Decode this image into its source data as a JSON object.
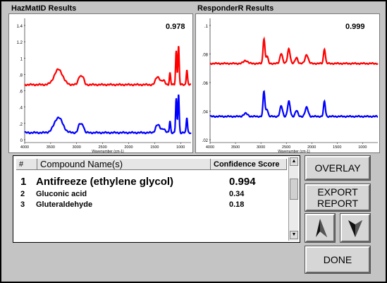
{
  "left_panel": {
    "title": "HazMatID Results",
    "score": "0.978",
    "y_ticks": [
      "1.4",
      "1.2",
      "1",
      ".8",
      ".6",
      ".4",
      ".2",
      "0"
    ],
    "x_ticks": [
      "4000",
      "3500",
      "3000",
      "2500",
      "2000",
      "1500",
      "1000"
    ],
    "xlabel": "Wavenumber (cm-1)"
  },
  "right_panel": {
    "title": "ResponderR Results",
    "score": "0.999",
    "y_ticks": [
      ".1",
      ".08",
      ".06",
      ".04",
      ".02"
    ],
    "x_ticks": [
      "4000",
      "3500",
      "3000",
      "2500",
      "2000",
      "1500",
      "1000"
    ],
    "xlabel": "Wavenumber (cm-1)"
  },
  "colors": {
    "reference": "#ff0000",
    "sample": "#0000ff"
  },
  "table": {
    "headers": {
      "num": "#",
      "name": "Compound Name(s)",
      "score": "Confidence Score"
    },
    "rows": [
      {
        "num": "1",
        "name": "Antifreeze (ethylene glycol)",
        "score": "0.994"
      },
      {
        "num": "2",
        "name": "Gluconic acid",
        "score": "0.34"
      },
      {
        "num": "3",
        "name": "Gluteraldehyde",
        "score": "0.18"
      }
    ]
  },
  "buttons": {
    "overlay": "OVERLAY",
    "export_line1": "EXPORT",
    "export_line2": "REPORT",
    "done": "DONE",
    "up_icon": "arrow-up-icon",
    "down_icon": "arrow-down-icon"
  }
}
